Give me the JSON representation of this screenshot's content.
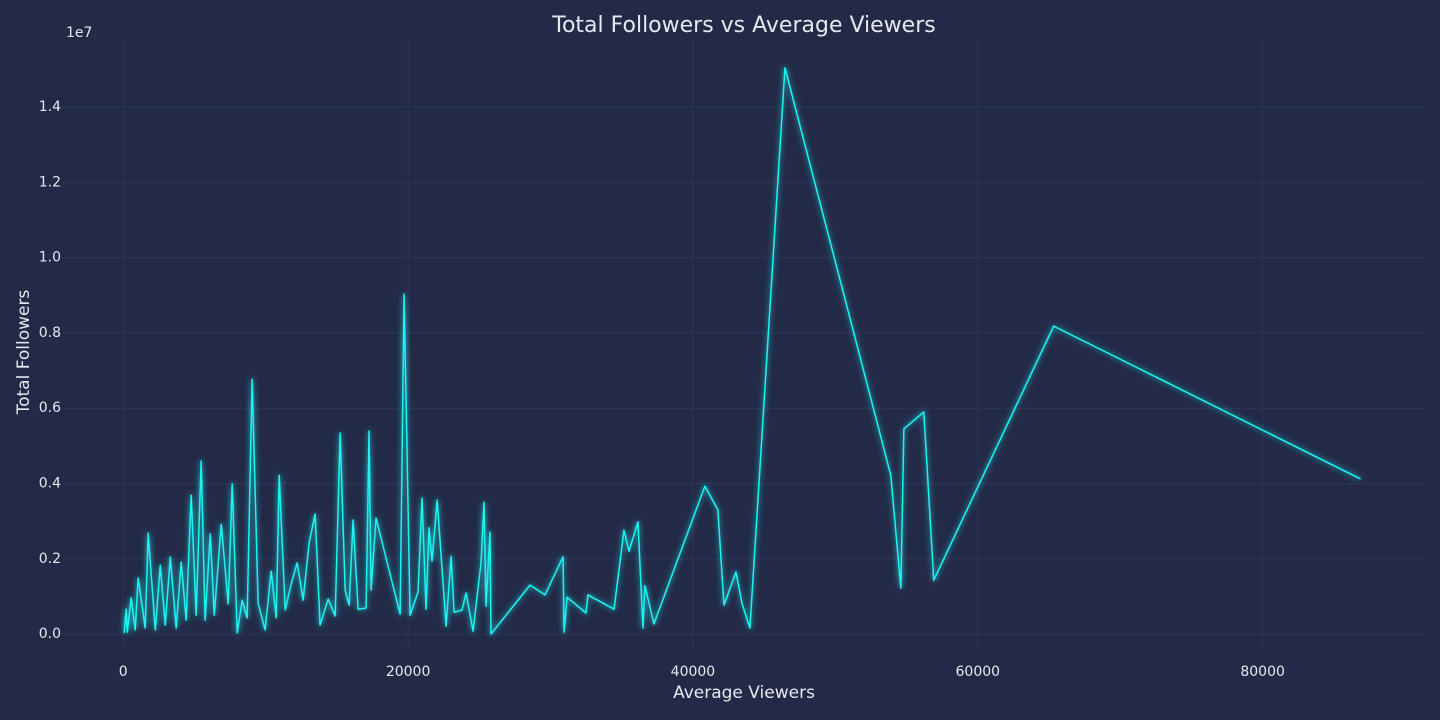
{
  "chart_data": {
    "type": "line",
    "title": "Total Followers vs Average Viewers",
    "x_label": "Average Viewers",
    "y_label": "Total Followers",
    "y_offset_label": "1e7",
    "grid": true,
    "color": "#1ff4f4",
    "xlim": [
      -4300,
      91400
    ],
    "ylim": [
      -370000,
      15780000
    ],
    "xticks": [
      0,
      20000,
      40000,
      60000,
      80000
    ],
    "yticks": [
      {
        "value": 0,
        "label": "0.0"
      },
      {
        "value": 2000000,
        "label": "0.2"
      },
      {
        "value": 4000000,
        "label": "0.4"
      },
      {
        "value": 6000000,
        "label": "0.6"
      },
      {
        "value": 8000000,
        "label": "0.8"
      },
      {
        "value": 10000000,
        "label": "1.0"
      },
      {
        "value": 12000000,
        "label": "1.2"
      },
      {
        "value": 14000000,
        "label": "1.4"
      }
    ],
    "x": [
      70,
      210,
      280,
      560,
      840,
      1050,
      1540,
      1750,
      2250,
      2600,
      2950,
      3300,
      3720,
      4070,
      4420,
      4770,
      5120,
      5470,
      5750,
      6110,
      6390,
      6880,
      7370,
      7650,
      8000,
      8350,
      8700,
      9050,
      9470,
      9960,
      10390,
      10740,
      10950,
      11370,
      11790,
      12210,
      12630,
      13050,
      13470,
      13820,
      14390,
      14880,
      15230,
      15580,
      15860,
      16140,
      16490,
      17050,
      17260,
      17400,
      17750,
      19440,
      19720,
      20140,
      20700,
      20980,
      21260,
      21470,
      21680,
      22040,
      22670,
      23020,
      23230,
      23790,
      24070,
      24560,
      25120,
      25330,
      25470,
      25750,
      25820,
      28560,
      29610,
      30880,
      30950,
      31160,
      32490,
      32630,
      34460,
      35160,
      35510,
      36140,
      36490,
      36630,
      37260,
      40840,
      41750,
      42180,
      43020,
      43440,
      44000,
      46460,
      53890,
      54600,
      54810,
      56210,
      56910,
      65330,
      86880
    ],
    "values": [
      30000,
      660000,
      50000,
      960000,
      110000,
      1490000,
      160000,
      2680000,
      110000,
      1830000,
      240000,
      2050000,
      160000,
      1910000,
      370000,
      3690000,
      500000,
      4600000,
      370000,
      2660000,
      500000,
      2920000,
      800000,
      3990000,
      30000,
      900000,
      430000,
      6770000,
      820000,
      110000,
      1670000,
      430000,
      4220000,
      640000,
      1330000,
      1890000,
      900000,
      2420000,
      3190000,
      240000,
      930000,
      480000,
      5340000,
      1170000,
      770000,
      3030000,
      660000,
      690000,
      5390000,
      1170000,
      3080000,
      530000,
      9030000,
      500000,
      1120000,
      3610000,
      660000,
      2820000,
      1940000,
      3560000,
      210000,
      2070000,
      580000,
      640000,
      1090000,
      80000,
      1890000,
      3500000,
      740000,
      2710000,
      0,
      1300000,
      1040000,
      2050000,
      50000,
      980000,
      560000,
      1040000,
      660000,
      2760000,
      2200000,
      2980000,
      160000,
      1280000,
      270000,
      3930000,
      3300000,
      770000,
      1650000,
      820000,
      160000,
      15040000,
      4220000,
      1220000,
      5450000,
      5900000,
      1430000,
      8180000,
      4120000
    ]
  }
}
